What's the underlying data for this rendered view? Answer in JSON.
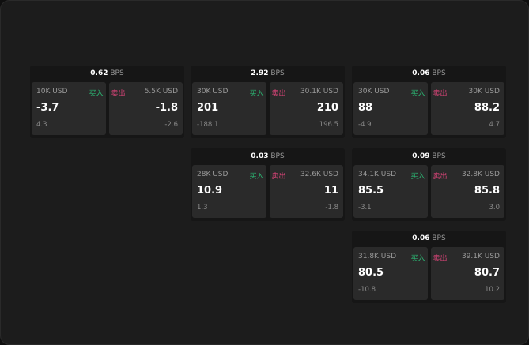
{
  "unit": "BPS",
  "buy_label": "买入",
  "sell_label": "卖出",
  "colors": {
    "buy": "#2bb673",
    "sell": "#e0457b"
  },
  "panels": [
    {
      "spread": "0.62",
      "bid": {
        "size": "10K USD",
        "price": "-3.7",
        "change": "4.3"
      },
      "ask": {
        "size": "5.5K USD",
        "price": "-1.8",
        "change": "-2.6"
      }
    },
    {
      "spread": "2.92",
      "bid": {
        "size": "30K USD",
        "price": "201",
        "change": "-188.1"
      },
      "ask": {
        "size": "30.1K USD",
        "price": "210",
        "change": "196.5"
      }
    },
    {
      "spread": "0.06",
      "bid": {
        "size": "30K USD",
        "price": "88",
        "change": "-4.9"
      },
      "ask": {
        "size": "30K USD",
        "price": "88.2",
        "change": "4.7"
      }
    },
    {
      "spread": "0.03",
      "bid": {
        "size": "28K USD",
        "price": "10.9",
        "change": "1.3"
      },
      "ask": {
        "size": "32.6K USD",
        "price": "11",
        "change": "-1.8"
      }
    },
    {
      "spread": "0.09",
      "bid": {
        "size": "34.1K USD",
        "price": "85.5",
        "change": "-3.1"
      },
      "ask": {
        "size": "32.8K USD",
        "price": "85.8",
        "change": "3.0"
      }
    },
    {
      "spread": "0.06",
      "bid": {
        "size": "31.8K USD",
        "price": "80.5",
        "change": "-10.8"
      },
      "ask": {
        "size": "39.1K USD",
        "price": "80.7",
        "change": "10.2"
      }
    }
  ]
}
